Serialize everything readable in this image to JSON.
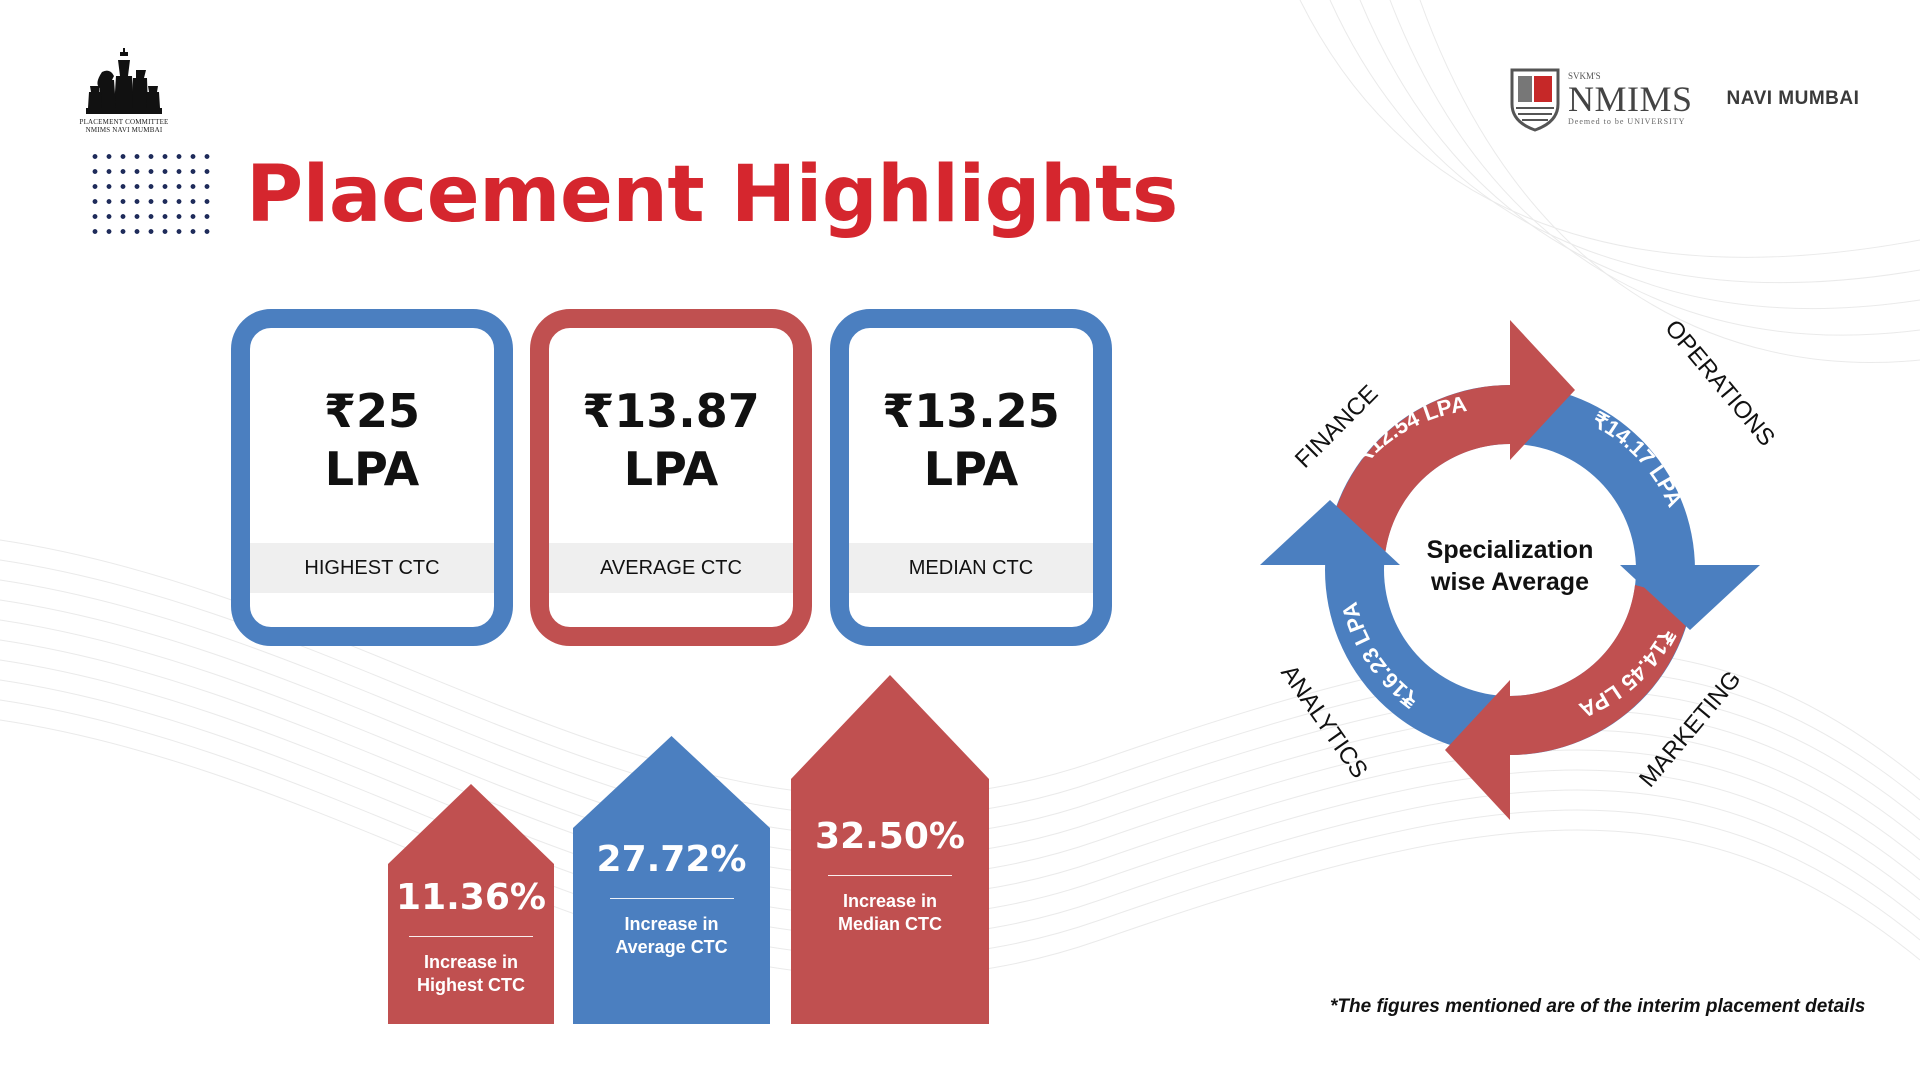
{
  "branding": {
    "committee_line1": "PLACEMENT COMMITTEE",
    "committee_line2": "NMIMS NAVI MUMBAI",
    "svkm": "SVKM'S",
    "nmims": "NMIMS",
    "university": "Deemed to be UNIVERSITY",
    "campus": "NAVI MUMBAI"
  },
  "title": "Placement Highlights",
  "ctc_cards": [
    {
      "value": "₹25\nLPA",
      "label": "HIGHEST CTC",
      "color": "#4b7fc0"
    },
    {
      "value": "₹13.87\nLPA",
      "label": "AVERAGE CTC",
      "color": "#c05050"
    },
    {
      "value": "₹13.25\nLPA",
      "label": "MEDIAN CTC",
      "color": "#4b7fc0"
    }
  ],
  "increases": [
    {
      "pct": "11.36%",
      "desc": "Increase in\nHighest CTC",
      "color": "#c05050"
    },
    {
      "pct": "27.72%",
      "desc": "Increase in\nAverage CTC",
      "color": "#4b7fc0"
    },
    {
      "pct": "32.50%",
      "desc": "Increase in\nMedian CTC",
      "color": "#c05050"
    }
  ],
  "specialization": {
    "center_line1": "Specialization",
    "center_line2": "wise Average",
    "segments": [
      {
        "name": "FINANCE",
        "value": "₹12.54 LPA",
        "color": "#c05050"
      },
      {
        "name": "OPERATIONS",
        "value": "₹14.17 LPA",
        "color": "#4b7fc0"
      },
      {
        "name": "MARKETING",
        "value": "₹14.45 LPA",
        "color": "#c05050"
      },
      {
        "name": "ANALYTICS",
        "value": "₹16.23 LPA",
        "color": "#4b7fc0"
      }
    ]
  },
  "footnote": "*The figures mentioned are of the interim placement details"
}
